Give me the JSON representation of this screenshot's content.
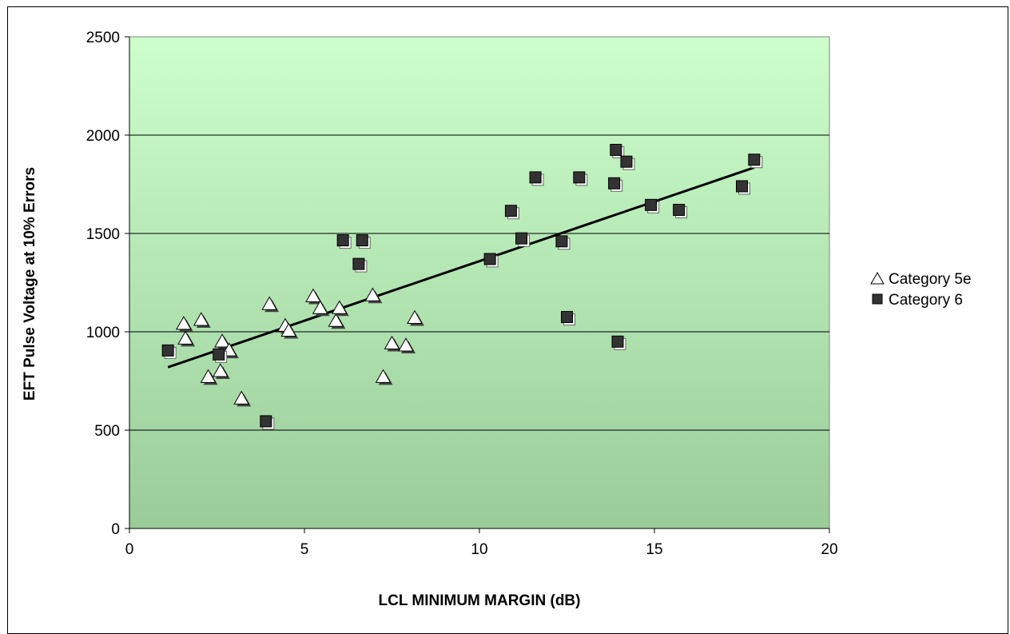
{
  "chart_data": {
    "type": "scatter",
    "xlabel": "LCL MINIMUM MARGIN (dB)",
    "ylabel": "EFT Pulse Voltage at 10% Errors",
    "xlim": [
      0,
      20
    ],
    "ylim": [
      0,
      2500
    ],
    "x_ticks": [
      "0",
      "5",
      "10",
      "15",
      "20"
    ],
    "y_ticks": [
      "0",
      "500",
      "1000",
      "1500",
      "2000",
      "2500"
    ],
    "grid": "horizontal",
    "legend_position": "right",
    "series": [
      {
        "name": "Category 5e",
        "marker": "triangle",
        "color": "#ffffff",
        "points": [
          [
            1.55,
            1040
          ],
          [
            1.6,
            965
          ],
          [
            2.05,
            1060
          ],
          [
            2.25,
            770
          ],
          [
            2.6,
            800
          ],
          [
            2.65,
            950
          ],
          [
            2.85,
            905
          ],
          [
            3.2,
            660
          ],
          [
            4.0,
            1140
          ],
          [
            4.45,
            1030
          ],
          [
            4.55,
            1005
          ],
          [
            5.25,
            1180
          ],
          [
            5.45,
            1120
          ],
          [
            5.9,
            1055
          ],
          [
            6.0,
            1120
          ],
          [
            6.95,
            1185
          ],
          [
            7.25,
            770
          ],
          [
            7.5,
            940
          ],
          [
            7.9,
            930
          ],
          [
            8.15,
            1070
          ]
        ]
      },
      {
        "name": "Category 6",
        "marker": "square",
        "color": "#333333",
        "points": [
          [
            1.1,
            905
          ],
          [
            2.55,
            885
          ],
          [
            3.9,
            545
          ],
          [
            6.1,
            1465
          ],
          [
            6.55,
            1345
          ],
          [
            6.65,
            1465
          ],
          [
            10.3,
            1370
          ],
          [
            10.9,
            1615
          ],
          [
            11.2,
            1475
          ],
          [
            11.6,
            1785
          ],
          [
            12.35,
            1460
          ],
          [
            12.5,
            1075
          ],
          [
            12.85,
            1785
          ],
          [
            13.85,
            1755
          ],
          [
            13.9,
            1925
          ],
          [
            13.95,
            950
          ],
          [
            14.2,
            1865
          ],
          [
            14.9,
            1645
          ],
          [
            15.7,
            1620
          ],
          [
            17.5,
            1740
          ],
          [
            17.85,
            1875
          ]
        ]
      }
    ],
    "trendline": {
      "x": [
        1.1,
        17.85
      ],
      "y": [
        820,
        1835
      ],
      "color": "#000000"
    },
    "plot_gradient": [
      "#ccffcc",
      "#99cc99"
    ]
  }
}
